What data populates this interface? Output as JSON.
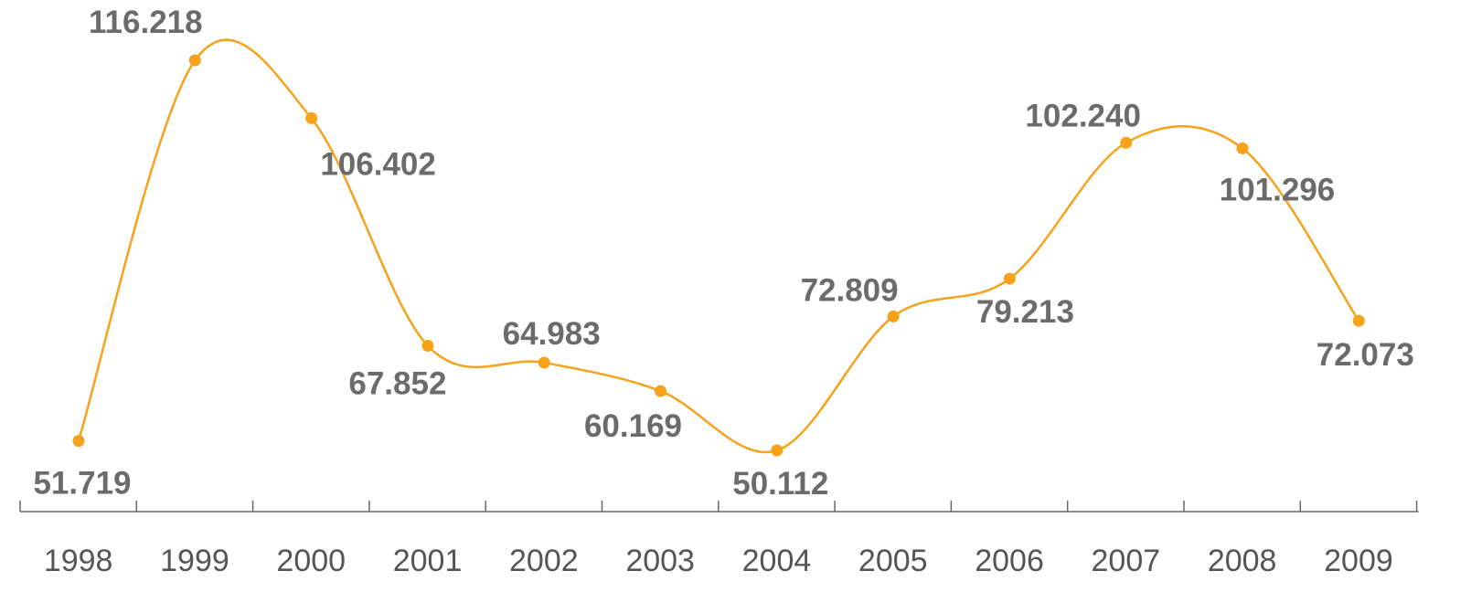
{
  "chart_data": {
    "type": "line",
    "categories": [
      "1998",
      "1999",
      "2000",
      "2001",
      "2002",
      "2003",
      "2004",
      "2005",
      "2006",
      "2007",
      "2008",
      "2009"
    ],
    "series": [
      {
        "values": [
          51.719,
          116.218,
          106.402,
          67.852,
          64.983,
          60.169,
          50.112,
          72.809,
          79.213,
          102.24,
          101.296,
          72.073
        ],
        "labels": [
          "51.719",
          "116.218",
          "106.402",
          "67.852",
          "64.983",
          "60.169",
          "50.112",
          "72.809",
          "79.213",
          "102.240",
          "101.296",
          "72.073"
        ]
      }
    ],
    "smooth": true,
    "markers": true,
    "grid": false,
    "legend": "none",
    "title": "",
    "xlabel": "",
    "ylabel": "",
    "colors": {
      "line": "#F7A21B",
      "marker": "#F7A21B",
      "data_label": "#6b6b6b",
      "axis": "#666666",
      "tick_label": "#555555"
    }
  }
}
